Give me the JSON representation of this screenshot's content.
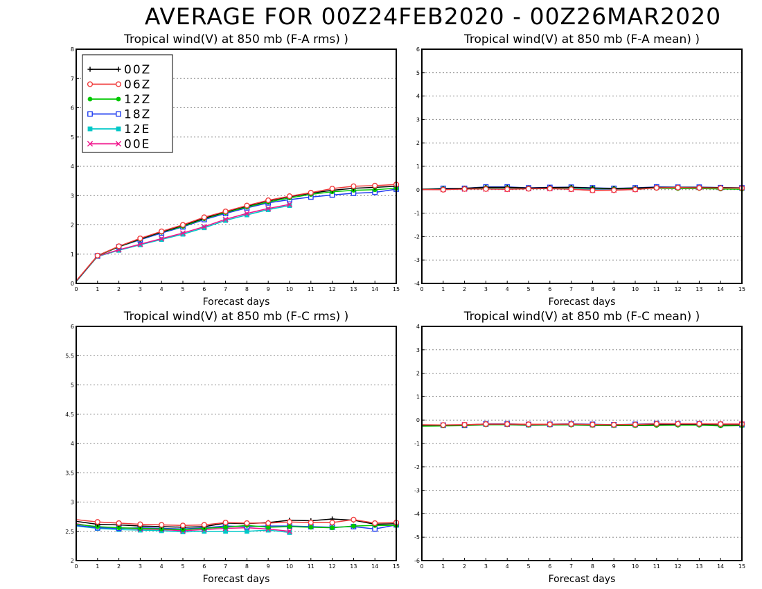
{
  "page": {
    "title": "AVERAGE FOR 00Z24FEB2020 - 00Z26MAR2020"
  },
  "legend": {
    "entries": [
      {
        "label": "00Z",
        "color": "#000000",
        "marker": "plus"
      },
      {
        "label": "06Z",
        "color": "#f03c3c",
        "marker": "open-circle"
      },
      {
        "label": "12Z",
        "color": "#00c800",
        "marker": "filled-circle"
      },
      {
        "label": "18Z",
        "color": "#1e3cf0",
        "marker": "open-square"
      },
      {
        "label": "12E",
        "color": "#00c8c8",
        "marker": "filled-square"
      },
      {
        "label": "00E",
        "color": "#f0148c",
        "marker": "x-cross"
      }
    ]
  },
  "chart_data": [
    {
      "type": "line",
      "title": "Tropical wind(V) at 850 mb (F-A rms) )",
      "xlabel": "Forecast days",
      "ylabel": "",
      "xlim": [
        0,
        15
      ],
      "ylim": [
        0,
        8
      ],
      "xticks": [
        "0",
        "1",
        "2",
        "3",
        "4",
        "5",
        "6",
        "7",
        "8",
        "9",
        "10",
        "11",
        "12",
        "13",
        "14",
        "15"
      ],
      "yticks": [
        "0",
        "1",
        "2",
        "3",
        "4",
        "5",
        "6",
        "7",
        "8"
      ],
      "grid": "horizontal-dotted",
      "legend_position": "top-left",
      "series": [
        {
          "name": "00Z",
          "x": [
            0,
            1,
            2,
            3,
            4,
            5,
            6,
            7,
            8,
            9,
            10,
            11,
            12,
            13,
            14,
            15
          ],
          "values": [
            0.08,
            0.95,
            1.26,
            1.52,
            1.76,
            1.98,
            2.23,
            2.45,
            2.64,
            2.82,
            2.96,
            3.08,
            3.18,
            3.25,
            3.28,
            3.32
          ]
        },
        {
          "name": "06Z",
          "x": [
            0,
            1,
            2,
            3,
            4,
            5,
            6,
            7,
            8,
            9,
            10,
            11,
            12,
            13,
            14,
            15
          ],
          "values": [
            0.09,
            0.95,
            1.27,
            1.54,
            1.78,
            2.0,
            2.26,
            2.46,
            2.66,
            2.84,
            2.98,
            3.1,
            3.24,
            3.32,
            3.34,
            3.38
          ]
        },
        {
          "name": "12Z",
          "x": [
            0,
            1,
            2,
            3,
            4,
            5,
            6,
            7,
            8,
            9,
            10,
            11,
            12,
            13,
            14,
            15
          ],
          "values": [
            0.08,
            0.94,
            1.25,
            1.51,
            1.75,
            1.95,
            2.21,
            2.42,
            2.61,
            2.78,
            2.92,
            3.04,
            3.13,
            3.18,
            3.2,
            3.25
          ]
        },
        {
          "name": "18Z",
          "x": [
            0,
            1,
            2,
            3,
            4,
            5,
            6,
            7,
            8,
            9,
            10,
            11,
            12,
            13,
            14,
            15
          ],
          "values": [
            0.07,
            0.94,
            1.25,
            1.49,
            1.72,
            1.93,
            2.18,
            2.39,
            2.58,
            2.75,
            2.86,
            2.95,
            3.02,
            3.08,
            3.11,
            3.22
          ]
        },
        {
          "name": "12E",
          "x": [
            0,
            1,
            2,
            3,
            4,
            5,
            6,
            7,
            8,
            9,
            10
          ],
          "values": [
            0.06,
            0.92,
            1.13,
            1.32,
            1.5,
            1.68,
            1.9,
            2.15,
            2.34,
            2.52,
            2.66
          ]
        },
        {
          "name": "00E",
          "x": [
            0,
            1,
            2,
            3,
            4,
            5,
            6,
            7,
            8,
            9,
            10
          ],
          "values": [
            0.07,
            0.93,
            1.15,
            1.34,
            1.53,
            1.72,
            1.94,
            2.19,
            2.39,
            2.56,
            2.7
          ]
        }
      ]
    },
    {
      "type": "line",
      "title": "Tropical wind(V) at 850 mb (F-A mean) )",
      "xlabel": "Forecast days",
      "ylabel": "",
      "xlim": [
        0,
        15
      ],
      "ylim": [
        -4,
        6
      ],
      "xticks": [
        "0",
        "1",
        "2",
        "3",
        "4",
        "5",
        "6",
        "7",
        "8",
        "9",
        "10",
        "11",
        "12",
        "13",
        "14",
        "15"
      ],
      "yticks": [
        "-4",
        "-3",
        "-2",
        "-1",
        "0",
        "1",
        "2",
        "3",
        "4",
        "5",
        "6"
      ],
      "grid": "horizontal-dotted",
      "series": [
        {
          "name": "00Z",
          "x": [
            0,
            1,
            2,
            3,
            4,
            5,
            6,
            7,
            8,
            9,
            10,
            11,
            12,
            13,
            14,
            15
          ],
          "values": [
            0.02,
            0.03,
            0.06,
            0.1,
            0.1,
            0.07,
            0.09,
            0.1,
            0.07,
            0.05,
            0.07,
            0.1,
            0.1,
            0.1,
            0.09,
            0.08
          ]
        },
        {
          "name": "06Z",
          "x": [
            0,
            1,
            2,
            3,
            4,
            5,
            6,
            7,
            8,
            9,
            10,
            11,
            12,
            13,
            14,
            15
          ],
          "values": [
            0.01,
            0.0,
            0.03,
            0.03,
            0.02,
            0.04,
            0.05,
            0.02,
            -0.03,
            -0.02,
            0.01,
            0.08,
            0.09,
            0.08,
            0.07,
            0.07
          ]
        },
        {
          "name": "12Z",
          "x": [
            0,
            1,
            2,
            3,
            4,
            5,
            6,
            7,
            8,
            9,
            10,
            11,
            12,
            13,
            14,
            15
          ],
          "values": [
            0.02,
            0.04,
            0.06,
            0.09,
            0.09,
            0.07,
            0.08,
            0.09,
            0.06,
            0.04,
            0.05,
            0.06,
            0.05,
            0.05,
            0.03,
            0.02
          ]
        },
        {
          "name": "18Z",
          "x": [
            0,
            1,
            2,
            3,
            4,
            5,
            6,
            7,
            8,
            9,
            10,
            11,
            12,
            13,
            14,
            15
          ],
          "values": [
            0.02,
            0.06,
            0.06,
            0.12,
            0.12,
            0.08,
            0.1,
            0.11,
            0.08,
            0.06,
            0.08,
            0.12,
            0.11,
            0.11,
            0.09,
            0.08
          ]
        },
        {
          "name": "12E",
          "x": [
            0,
            1,
            2,
            3,
            4,
            5,
            6,
            7,
            8,
            9,
            10
          ],
          "values": [
            0.01,
            0.02,
            0.04,
            0.05,
            0.04,
            0.05,
            0.06,
            0.04,
            0.01,
            0.0,
            0.02
          ]
        },
        {
          "name": "00E",
          "x": [
            0,
            1,
            2,
            3,
            4,
            5,
            6,
            7,
            8,
            9,
            10
          ],
          "values": [
            0.01,
            0.01,
            0.03,
            0.03,
            0.02,
            0.05,
            0.05,
            0.02,
            -0.02,
            -0.01,
            0.01
          ]
        }
      ]
    },
    {
      "type": "line",
      "title": "Tropical wind(V) at 850 mb (F-C rms) )",
      "xlabel": "Forecast days",
      "ylabel": "",
      "xlim": [
        0,
        15
      ],
      "ylim": [
        2,
        6
      ],
      "xticks": [
        "0",
        "1",
        "2",
        "3",
        "4",
        "5",
        "6",
        "7",
        "8",
        "9",
        "10",
        "11",
        "12",
        "13",
        "14",
        "15"
      ],
      "yticks": [
        "2",
        "2.5",
        "3",
        "3.5",
        "4",
        "4.5",
        "5",
        "5.5",
        "6"
      ],
      "grid": "horizontal-dotted",
      "series": [
        {
          "name": "00Z",
          "x": [
            0,
            1,
            2,
            3,
            4,
            5,
            6,
            7,
            8,
            9,
            10,
            11,
            12,
            13,
            14,
            15
          ],
          "values": [
            2.67,
            2.62,
            2.61,
            2.59,
            2.58,
            2.57,
            2.58,
            2.64,
            2.63,
            2.65,
            2.69,
            2.68,
            2.71,
            2.69,
            2.62,
            2.63
          ]
        },
        {
          "name": "06Z",
          "x": [
            0,
            1,
            2,
            3,
            4,
            5,
            6,
            7,
            8,
            9,
            10,
            11,
            12,
            13,
            14,
            15
          ],
          "values": [
            2.7,
            2.66,
            2.64,
            2.62,
            2.61,
            2.6,
            2.61,
            2.65,
            2.64,
            2.64,
            2.66,
            2.65,
            2.65,
            2.7,
            2.64,
            2.65
          ]
        },
        {
          "name": "12Z",
          "x": [
            0,
            1,
            2,
            3,
            4,
            5,
            6,
            7,
            8,
            9,
            10,
            11,
            12,
            13,
            14,
            15
          ],
          "values": [
            2.62,
            2.58,
            2.56,
            2.55,
            2.54,
            2.53,
            2.55,
            2.57,
            2.6,
            2.57,
            2.58,
            2.57,
            2.56,
            2.59,
            2.6,
            2.6
          ]
        },
        {
          "name": "18Z",
          "x": [
            0,
            1,
            2,
            3,
            4,
            5,
            6,
            7,
            8,
            9,
            10,
            11,
            12,
            13,
            14,
            15
          ],
          "values": [
            2.6,
            2.56,
            2.55,
            2.56,
            2.55,
            2.54,
            2.56,
            2.59,
            2.58,
            2.59,
            2.59,
            2.58,
            2.57,
            2.58,
            2.54,
            2.61
          ]
        },
        {
          "name": "12E",
          "x": [
            0,
            1,
            2,
            3,
            4,
            5,
            6,
            7,
            8,
            9,
            10
          ],
          "values": [
            2.59,
            2.55,
            2.53,
            2.52,
            2.51,
            2.49,
            2.5,
            2.5,
            2.5,
            2.52,
            2.48
          ]
        },
        {
          "name": "00E",
          "x": [
            0,
            1,
            2,
            3,
            4,
            5,
            6,
            7,
            8,
            9,
            10
          ],
          "values": [
            2.63,
            2.57,
            2.56,
            2.54,
            2.53,
            2.51,
            2.53,
            2.55,
            2.56,
            2.54,
            2.5
          ]
        }
      ]
    },
    {
      "type": "line",
      "title": "Tropical wind(V) at 850 mb (F-C mean) )",
      "xlabel": "Forecast days",
      "ylabel": "",
      "xlim": [
        0,
        15
      ],
      "ylim": [
        -6,
        4
      ],
      "xticks": [
        "0",
        "1",
        "2",
        "3",
        "4",
        "5",
        "6",
        "7",
        "8",
        "9",
        "10",
        "11",
        "12",
        "13",
        "14",
        "15"
      ],
      "yticks": [
        "-6",
        "-5",
        "-4",
        "-3",
        "-2",
        "-1",
        "0",
        "1",
        "2",
        "3",
        "4"
      ],
      "grid": "horizontal-dotted",
      "series": [
        {
          "name": "00Z",
          "x": [
            0,
            1,
            2,
            3,
            4,
            5,
            6,
            7,
            8,
            9,
            10,
            11,
            12,
            13,
            14,
            15
          ],
          "values": [
            -0.22,
            -0.22,
            -0.21,
            -0.18,
            -0.18,
            -0.2,
            -0.19,
            -0.18,
            -0.2,
            -0.21,
            -0.2,
            -0.19,
            -0.18,
            -0.18,
            -0.2,
            -0.2
          ]
        },
        {
          "name": "06Z",
          "x": [
            0,
            1,
            2,
            3,
            4,
            5,
            6,
            7,
            8,
            9,
            10,
            11,
            12,
            13,
            14,
            15
          ],
          "values": [
            -0.2,
            -0.21,
            -0.2,
            -0.17,
            -0.17,
            -0.18,
            -0.18,
            -0.17,
            -0.19,
            -0.2,
            -0.19,
            -0.16,
            -0.16,
            -0.16,
            -0.17,
            -0.17
          ]
        },
        {
          "name": "12Z",
          "x": [
            0,
            1,
            2,
            3,
            4,
            5,
            6,
            7,
            8,
            9,
            10,
            11,
            12,
            13,
            14,
            15
          ],
          "values": [
            -0.26,
            -0.25,
            -0.24,
            -0.2,
            -0.2,
            -0.22,
            -0.21,
            -0.21,
            -0.23,
            -0.24,
            -0.24,
            -0.23,
            -0.22,
            -0.22,
            -0.25,
            -0.24
          ]
        },
        {
          "name": "18Z",
          "x": [
            0,
            1,
            2,
            3,
            4,
            5,
            6,
            7,
            8,
            9,
            10,
            11,
            12,
            13,
            14,
            15
          ],
          "values": [
            -0.22,
            -0.22,
            -0.23,
            -0.16,
            -0.16,
            -0.19,
            -0.18,
            -0.16,
            -0.18,
            -0.2,
            -0.18,
            -0.15,
            -0.16,
            -0.16,
            -0.19,
            -0.2
          ]
        },
        {
          "name": "12E",
          "x": [
            0,
            1,
            2,
            3,
            4,
            5,
            6,
            7,
            8,
            9,
            10
          ],
          "values": [
            -0.24,
            -0.24,
            -0.22,
            -0.19,
            -0.19,
            -0.21,
            -0.2,
            -0.19,
            -0.21,
            -0.23,
            -0.22
          ]
        },
        {
          "name": "00E",
          "x": [
            0,
            1,
            2,
            3,
            4,
            5,
            6,
            7,
            8,
            9,
            10,
            11,
            12,
            13,
            14,
            15
          ],
          "values": [
            -0.21,
            -0.21,
            -0.2,
            -0.17,
            -0.18,
            -0.18,
            -0.18,
            -0.17,
            -0.2,
            -0.2,
            -0.19,
            -0.17,
            -0.16,
            -0.16,
            -0.17,
            -0.17
          ]
        }
      ]
    }
  ]
}
